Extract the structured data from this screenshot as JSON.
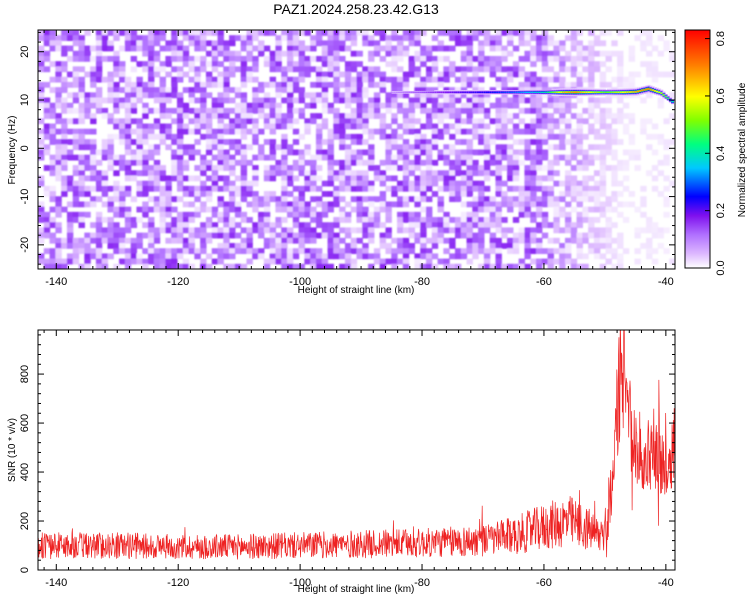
{
  "title": "PAZ1.2024.258.23.42.G13",
  "colors": {
    "snr_line": "#ee2222",
    "colormap": [
      "#ffffff",
      "#ddb8ff",
      "#b070ff",
      "#7f10ee",
      "#0000ff",
      "#00c8ff",
      "#00ff80",
      "#80ff00",
      "#ffff00",
      "#ff8000",
      "#ff0000"
    ]
  },
  "chart_data": [
    {
      "type": "heatmap",
      "xlabel": "Height of straight line (km)",
      "ylabel": "Frequency (Hz)",
      "xlim": [
        -143,
        -38.5
      ],
      "ylim": [
        -25,
        24.5
      ],
      "xticks": [
        -140,
        -120,
        -100,
        -80,
        -60,
        -40
      ],
      "yticks": [
        -20,
        -10,
        0,
        10,
        20
      ],
      "colorbar": {
        "label": "Normalized spectral amplitude",
        "range": [
          0,
          0.83
        ],
        "ticks": [
          0.0,
          0.2,
          0.4,
          0.6,
          0.8
        ]
      },
      "signal_band": {
        "height_km": [
          -85,
          -80,
          -75,
          -70,
          -65,
          -60,
          -57,
          -55,
          -50,
          -47,
          -45,
          -43,
          -41,
          -39
        ],
        "frequency_hz": [
          11.6,
          11.6,
          11.6,
          11.6,
          11.6,
          11.6,
          11.6,
          11.6,
          11.6,
          11.6,
          11.7,
          12.3,
          11.5,
          9.5
        ],
        "amplitude": [
          0.15,
          0.22,
          0.3,
          0.36,
          0.42,
          0.52,
          0.78,
          0.82,
          0.62,
          0.74,
          0.8,
          0.83,
          0.7,
          0.5
        ]
      },
      "noise_amplitude": 0.1
    },
    {
      "type": "line",
      "xlabel": "Height of straight line (km)",
      "ylabel": "SNR (10 * v/v)",
      "xlim": [
        -143,
        -38.5
      ],
      "ylim": [
        0,
        980
      ],
      "xticks": [
        -140,
        -120,
        -100,
        -80,
        -60,
        -40
      ],
      "yticks": [
        0,
        200,
        400,
        600,
        800
      ],
      "series": [
        {
          "x": [
            -143,
            -130,
            -120,
            -110,
            -100,
            -90,
            -80,
            -70,
            -65,
            -60,
            -56,
            -53,
            -51,
            -50,
            -49,
            -48,
            -47.5,
            -47,
            -46.5,
            -46,
            -45,
            -44,
            -43,
            -42,
            -41,
            -40,
            -39,
            -38.5
          ],
          "values": [
            100,
            100,
            95,
            95,
            100,
            105,
            110,
            120,
            140,
            175,
            200,
            170,
            140,
            160,
            300,
            640,
            800,
            760,
            720,
            620,
            520,
            480,
            460,
            500,
            450,
            380,
            500,
            520
          ]
        }
      ]
    }
  ]
}
